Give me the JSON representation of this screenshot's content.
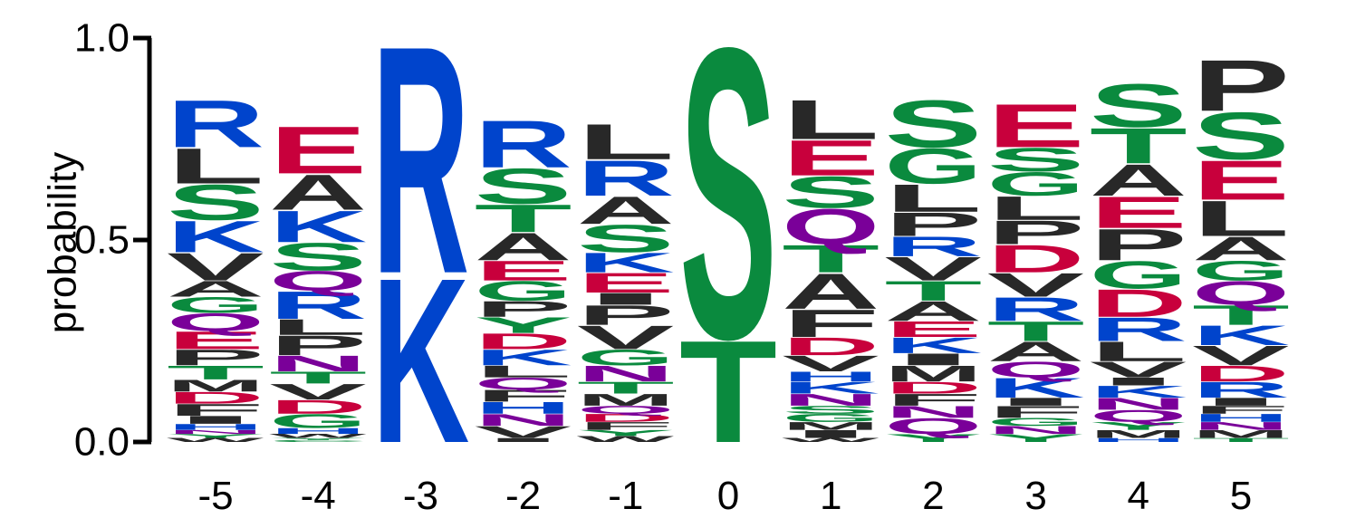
{
  "chart_data": {
    "type": "sequence-logo",
    "ylabel": "probability",
    "ylim": [
      0,
      1
    ],
    "yticks": [
      "0.0",
      "0.5",
      "1.0"
    ],
    "ytick_values": [
      0,
      0.5,
      1.0
    ],
    "colors": {
      "basic": "#0044cc",
      "acidic": "#c8003c",
      "polar": "#0a8a3e",
      "amide": "#7a0099",
      "hydrophobic": "#282828"
    },
    "color_groups": {
      "K": "basic",
      "R": "basic",
      "H": "basic",
      "D": "acidic",
      "E": "acidic",
      "S": "polar",
      "T": "polar",
      "G": "polar",
      "Y": "polar",
      "C": "polar",
      "N": "amide",
      "Q": "amide",
      "A": "hydrophobic",
      "V": "hydrophobic",
      "L": "hydrophobic",
      "I": "hydrophobic",
      "P": "hydrophobic",
      "F": "hydrophobic",
      "M": "hydrophobic",
      "W": "hydrophobic"
    },
    "positions": [
      {
        "label": "-5",
        "stack": [
          [
            "W",
            0.01
          ],
          [
            "Y",
            0.01
          ],
          [
            "N",
            0.01
          ],
          [
            "H",
            0.015
          ],
          [
            "I",
            0.02
          ],
          [
            "F",
            0.03
          ],
          [
            "D",
            0.03
          ],
          [
            "M",
            0.03
          ],
          [
            "T",
            0.035
          ],
          [
            "P",
            0.04
          ],
          [
            "E",
            0.045
          ],
          [
            "Q",
            0.045
          ],
          [
            "G",
            0.04
          ],
          [
            "A",
            0.04
          ],
          [
            "V",
            0.07
          ],
          [
            "K",
            0.08
          ],
          [
            "S",
            0.09
          ],
          [
            "L",
            0.09
          ],
          [
            "R",
            0.12
          ]
        ]
      },
      {
        "label": "-4",
        "stack": [
          [
            "C",
            0.005
          ],
          [
            "Y",
            0.005
          ],
          [
            "W",
            0.01
          ],
          [
            "H",
            0.015
          ],
          [
            "G",
            0.035
          ],
          [
            "D",
            0.035
          ],
          [
            "V",
            0.04
          ],
          [
            "T",
            0.03
          ],
          [
            "N",
            0.04
          ],
          [
            "P",
            0.05
          ],
          [
            "L",
            0.04
          ],
          [
            "R",
            0.07
          ],
          [
            "Q",
            0.05
          ],
          [
            "S",
            0.07
          ],
          [
            "K",
            0.08
          ],
          [
            "A",
            0.09
          ],
          [
            "E",
            0.12
          ]
        ]
      },
      {
        "label": "-3",
        "stack": [
          [
            "K",
            0.42
          ],
          [
            "R",
            0.58
          ]
        ]
      },
      {
        "label": "-2",
        "stack": [
          [
            "I",
            0.01
          ],
          [
            "V",
            0.03
          ],
          [
            "N",
            0.03
          ],
          [
            "H",
            0.03
          ],
          [
            "F",
            0.03
          ],
          [
            "Q",
            0.03
          ],
          [
            "L",
            0.03
          ],
          [
            "K",
            0.04
          ],
          [
            "D",
            0.04
          ],
          [
            "Y",
            0.04
          ],
          [
            "P",
            0.04
          ],
          [
            "G",
            0.05
          ],
          [
            "E",
            0.05
          ],
          [
            "A",
            0.07
          ],
          [
            "T",
            0.07
          ],
          [
            "S",
            0.09
          ],
          [
            "R",
            0.12
          ]
        ]
      },
      {
        "label": "-1",
        "stack": [
          [
            "W",
            0.015
          ],
          [
            "Y",
            0.015
          ],
          [
            "F",
            0.02
          ],
          [
            "D",
            0.02
          ],
          [
            "Q",
            0.02
          ],
          [
            "M",
            0.03
          ],
          [
            "T",
            0.03
          ],
          [
            "N",
            0.04
          ],
          [
            "G",
            0.04
          ],
          [
            "V",
            0.06
          ],
          [
            "P",
            0.05
          ],
          [
            "I",
            0.03
          ],
          [
            "E",
            0.05
          ],
          [
            "K",
            0.05
          ],
          [
            "S",
            0.07
          ],
          [
            "A",
            0.07
          ],
          [
            "R",
            0.09
          ],
          [
            "L",
            0.09
          ]
        ]
      },
      {
        "label": "0",
        "stack": [
          [
            "T",
            0.26
          ],
          [
            "S",
            0.74
          ]
        ]
      },
      {
        "label": "1",
        "stack": [
          [
            "W",
            0.01
          ],
          [
            "I",
            0.02
          ],
          [
            "M",
            0.02
          ],
          [
            "G",
            0.02
          ],
          [
            "S",
            0.02
          ],
          [
            "N",
            0.03
          ],
          [
            "K",
            0.03
          ],
          [
            "H",
            0.025
          ],
          [
            "V",
            0.04
          ],
          [
            "D",
            0.045
          ],
          [
            "F",
            0.07
          ],
          [
            "A",
            0.09
          ],
          [
            "T",
            0.07
          ],
          [
            "Q",
            0.09
          ],
          [
            "S",
            0.08
          ],
          [
            "E",
            0.09
          ],
          [
            "L",
            0.1
          ]
        ]
      },
      {
        "label": "2",
        "stack": [
          [
            "Y",
            0.02
          ],
          [
            "Q",
            0.04
          ],
          [
            "N",
            0.03
          ],
          [
            "F",
            0.03
          ],
          [
            "D",
            0.03
          ],
          [
            "M",
            0.04
          ],
          [
            "I",
            0.03
          ],
          [
            "K",
            0.04
          ],
          [
            "E",
            0.04
          ],
          [
            "A",
            0.05
          ],
          [
            "T",
            0.05
          ],
          [
            "V",
            0.06
          ],
          [
            "R",
            0.05
          ],
          [
            "P",
            0.06
          ],
          [
            "L",
            0.07
          ],
          [
            "G",
            0.09
          ],
          [
            "S",
            0.12
          ]
        ]
      },
      {
        "label": "3",
        "stack": [
          [
            "Y",
            0.02
          ],
          [
            "N",
            0.02
          ],
          [
            "G",
            0.02
          ],
          [
            "F",
            0.03
          ],
          [
            "I",
            0.02
          ],
          [
            "K",
            0.05
          ],
          [
            "Q",
            0.04
          ],
          [
            "A",
            0.05
          ],
          [
            "T",
            0.05
          ],
          [
            "R",
            0.06
          ],
          [
            "V",
            0.06
          ],
          [
            "D",
            0.07
          ],
          [
            "P",
            0.06
          ],
          [
            "L",
            0.06
          ],
          [
            "G",
            0.06
          ],
          [
            "S",
            0.06
          ],
          [
            "E",
            0.11
          ]
        ]
      },
      {
        "label": "4",
        "stack": [
          [
            "H",
            0.01
          ],
          [
            "M",
            0.02
          ],
          [
            "Y",
            0.02
          ],
          [
            "Q",
            0.03
          ],
          [
            "N",
            0.03
          ],
          [
            "K",
            0.03
          ],
          [
            "I",
            0.02
          ],
          [
            "V",
            0.04
          ],
          [
            "L",
            0.05
          ],
          [
            "R",
            0.06
          ],
          [
            "D",
            0.07
          ],
          [
            "G",
            0.07
          ],
          [
            "P",
            0.08
          ],
          [
            "E",
            0.08
          ],
          [
            "A",
            0.08
          ],
          [
            "T",
            0.09
          ],
          [
            "S",
            0.11
          ]
        ]
      },
      {
        "label": "5",
        "stack": [
          [
            "T",
            0.01
          ],
          [
            "M",
            0.02
          ],
          [
            "N",
            0.02
          ],
          [
            "H",
            0.02
          ],
          [
            "F",
            0.02
          ],
          [
            "I",
            0.02
          ],
          [
            "R",
            0.04
          ],
          [
            "D",
            0.04
          ],
          [
            "V",
            0.05
          ],
          [
            "K",
            0.05
          ],
          [
            "T",
            0.05
          ],
          [
            "Q",
            0.06
          ],
          [
            "G",
            0.05
          ],
          [
            "A",
            0.06
          ],
          [
            "L",
            0.09
          ],
          [
            "E",
            0.1
          ],
          [
            "S",
            0.12
          ],
          [
            "P",
            0.13
          ]
        ]
      }
    ]
  }
}
